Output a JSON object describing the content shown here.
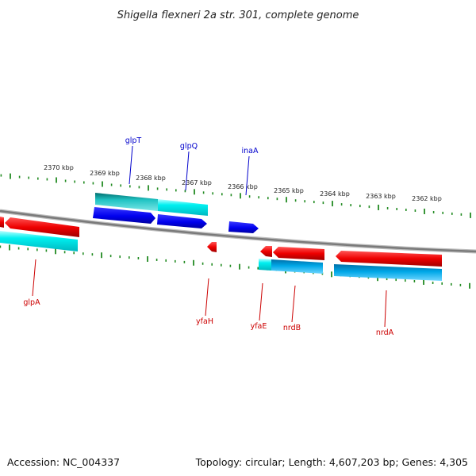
{
  "title": "Shigella flexneri 2a str. 301, complete genome",
  "footer": {
    "accession": "Accession: NC_004337",
    "summary": "Topology: circular; Length: 4,607,203 bp; Genes: 4,305"
  },
  "colors": {
    "background": "#ffffff",
    "backbone": "#808080",
    "tick": "#228b22",
    "gene_forward": "#0000ee",
    "cds_forward": "#00e5ee",
    "gene_reverse": "#ee0000",
    "cds_reverse": "#00b2ee",
    "label_forward": "#0000cc",
    "label_reverse": "#cc0000"
  },
  "ruler": {
    "unit": "kbp",
    "ticks": [
      {
        "label": "2370 kbp"
      },
      {
        "label": "2369 kbp"
      },
      {
        "label": "2368 kbp"
      },
      {
        "label": "2367 kbp"
      },
      {
        "label": "2366 kbp"
      },
      {
        "label": "2365 kbp"
      },
      {
        "label": "2364 kbp"
      },
      {
        "label": "2363 kbp"
      },
      {
        "label": "2362 kbp"
      }
    ]
  },
  "genes_forward_strand": [
    {
      "name": "glpT"
    },
    {
      "name": "glpQ"
    },
    {
      "name": "inaA"
    }
  ],
  "genes_reverse_strand": [
    {
      "name": "glpA"
    },
    {
      "name": "yfaH"
    },
    {
      "name": "yfaE"
    },
    {
      "name": "nrdB"
    },
    {
      "name": "nrdA"
    }
  ]
}
